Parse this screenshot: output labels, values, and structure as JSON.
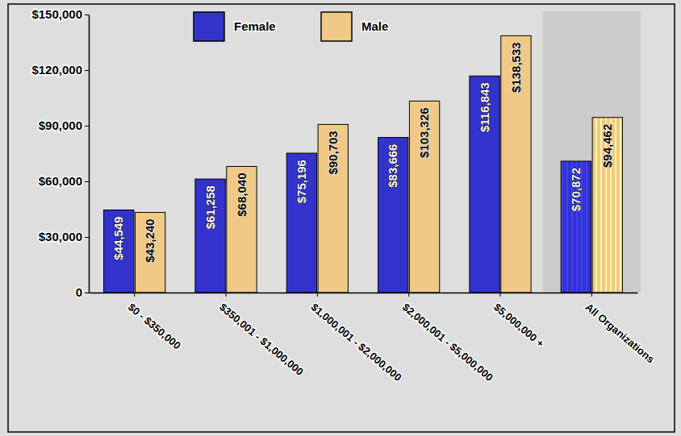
{
  "chart_data": {
    "type": "bar",
    "categories": [
      "$0 - $350,000",
      "$350,001 - $1,000,000",
      "$1,000,001 - $2,000,000",
      "$2,000,001 - $5,000,000",
      "$5,000,000 +",
      "All Organizations"
    ],
    "series": [
      {
        "name": "Female",
        "color": "#3333cc",
        "values": [
          44549,
          61258,
          75196,
          83666,
          116843,
          70872
        ],
        "value_labels": [
          "$44,549",
          "$61,258",
          "$75,196",
          "$83,666",
          "$116,843",
          "$70,872"
        ]
      },
      {
        "name": "Male",
        "color": "#f0c987",
        "values": [
          43240,
          68040,
          90703,
          103326,
          138533,
          94462
        ],
        "value_labels": [
          "$43,240",
          "$68,040",
          "$90,703",
          "$103,326",
          "$138,533",
          "$94,462"
        ]
      }
    ],
    "ylim": [
      0,
      150000
    ],
    "yticks": [
      0,
      {
        "value": 30000,
        "label": "$30,000"
      },
      {
        "value": 60000,
        "label": "$60,000"
      },
      {
        "value": 90000,
        "label": "$90,000"
      },
      {
        "value": 120000,
        "label": "$120,000"
      },
      {
        "value": 150000,
        "label": "$150,000"
      }
    ],
    "grid": false,
    "legend": "top",
    "data_labels": true
  }
}
